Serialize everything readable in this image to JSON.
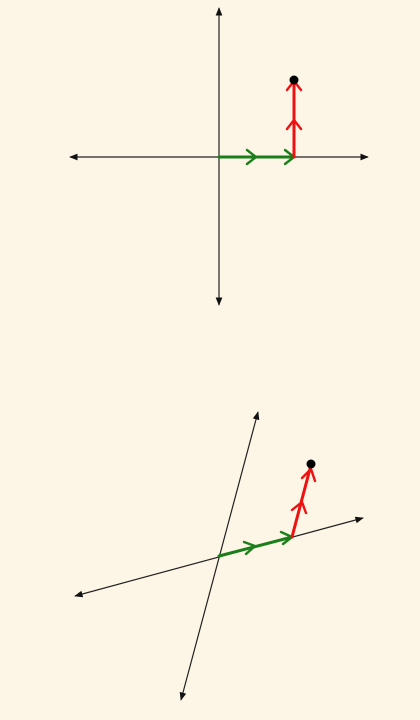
{
  "colors": {
    "background": "#fdf5e6",
    "axis": "#222222",
    "first_vector": "#1a7f1a",
    "second_vector": "#ee1111",
    "point": "#000000"
  },
  "panels": [
    {
      "name": "standard-basis-panel",
      "description_axes": "perpendicular",
      "first_vector_steps": 1,
      "second_vector_steps": 1
    },
    {
      "name": "skewed-basis-panel",
      "description_axes": "oblique",
      "first_vector_steps": 1,
      "second_vector_steps": 1
    }
  ]
}
